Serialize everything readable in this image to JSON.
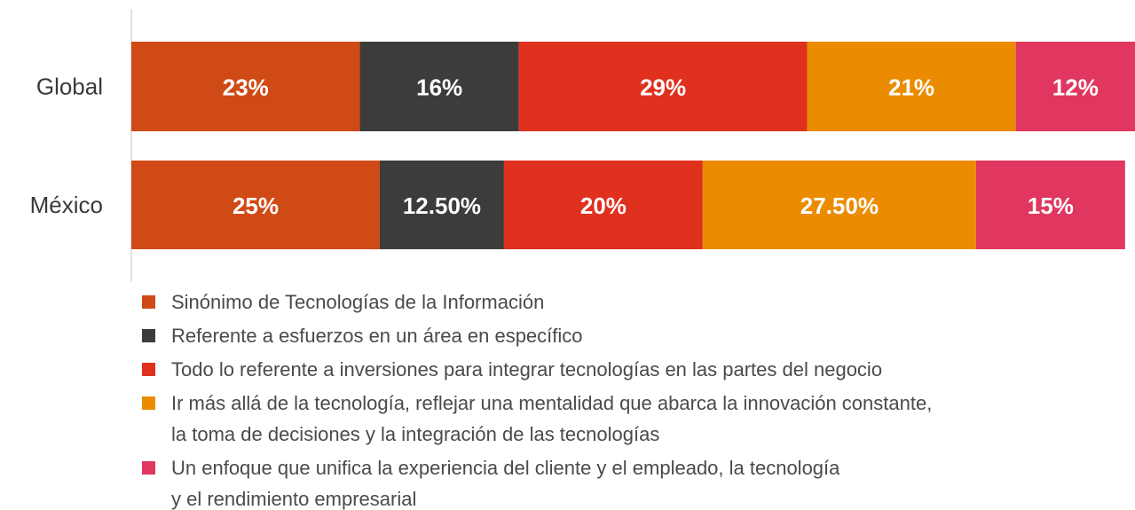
{
  "chart_data": {
    "type": "stacked-bar-horizontal",
    "categories": [
      "Global",
      "México"
    ],
    "xlim": [
      0,
      101
    ],
    "series": [
      {
        "name": "Sinónimo de Tecnologías de la Información",
        "color": "#d04a16",
        "values": [
          23,
          25
        ],
        "value_labels": [
          "23%",
          "25%"
        ]
      },
      {
        "name": "Referente a esfuerzos en un área en específico",
        "color": "#3c3c3b",
        "values": [
          16,
          12.5
        ],
        "value_labels": [
          "16%",
          "12.50%"
        ]
      },
      {
        "name": "Todo lo referente a inversiones para integrar tecnologías en las partes del negocio",
        "color": "#e0301e",
        "values": [
          29,
          20
        ],
        "value_labels": [
          "29%",
          "20%"
        ]
      },
      {
        "name": "Ir más allá de la tecnología, reflejar una mentalidad que abarca la innovación constante,\nla toma de decisiones y la integración de las tecnologías",
        "color": "#eb8c00",
        "values": [
          21,
          27.5
        ],
        "value_labels": [
          "21%",
          "27.50%"
        ]
      },
      {
        "name": "Un enfoque que unifica la experiencia del cliente y el empleado, la tecnología\ny el rendimiento empresarial",
        "color": "#e0365f",
        "values": [
          12,
          15
        ],
        "value_labels": [
          "12%",
          "15%"
        ]
      }
    ]
  }
}
